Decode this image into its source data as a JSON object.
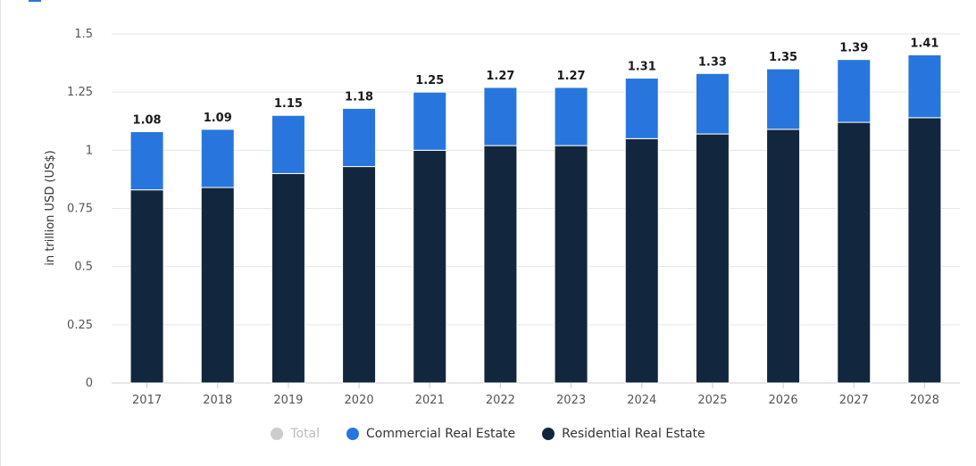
{
  "chart_data": {
    "type": "bar",
    "stacked": true,
    "categories": [
      "2017",
      "2018",
      "2019",
      "2020",
      "2021",
      "2022",
      "2023",
      "2024",
      "2025",
      "2026",
      "2027",
      "2028"
    ],
    "series": [
      {
        "name": "Residential Real Estate",
        "color": "#12263d",
        "values": [
          0.83,
          0.84,
          0.9,
          0.93,
          1.0,
          1.02,
          1.02,
          1.05,
          1.07,
          1.09,
          1.12,
          1.14
        ]
      },
      {
        "name": "Commercial Real Estate",
        "color": "#2876dd",
        "values": [
          0.25,
          0.25,
          0.25,
          0.25,
          0.25,
          0.25,
          0.25,
          0.26,
          0.26,
          0.26,
          0.27,
          0.27
        ]
      }
    ],
    "totals": [
      1.08,
      1.09,
      1.15,
      1.18,
      1.25,
      1.27,
      1.27,
      1.31,
      1.33,
      1.35,
      1.39,
      1.41
    ],
    "total_labels": [
      "1.08",
      "1.09",
      "1.15",
      "1.18",
      "1.25",
      "1.27",
      "1.27",
      "1.31",
      "1.33",
      "1.35",
      "1.39",
      "1.41"
    ],
    "yticks": [
      0,
      0.25,
      0.5,
      0.75,
      1,
      1.25,
      1.5
    ],
    "ytick_labels": [
      "0",
      "0.25",
      "0.5",
      "0.75",
      "1",
      "1.25",
      "1.5"
    ],
    "ylim": [
      0,
      1.5
    ],
    "ylabel": "in trillion USD (US$)",
    "xlabel": "",
    "title": "",
    "grid": true,
    "legend_position": "bottom"
  },
  "legend": {
    "items": [
      {
        "label": "Total",
        "color": "#cccccc",
        "hidden": true
      },
      {
        "label": "Commercial Real Estate",
        "color": "#2876dd",
        "hidden": false
      },
      {
        "label": "Residential Real Estate",
        "color": "#12263d",
        "hidden": false
      }
    ]
  }
}
